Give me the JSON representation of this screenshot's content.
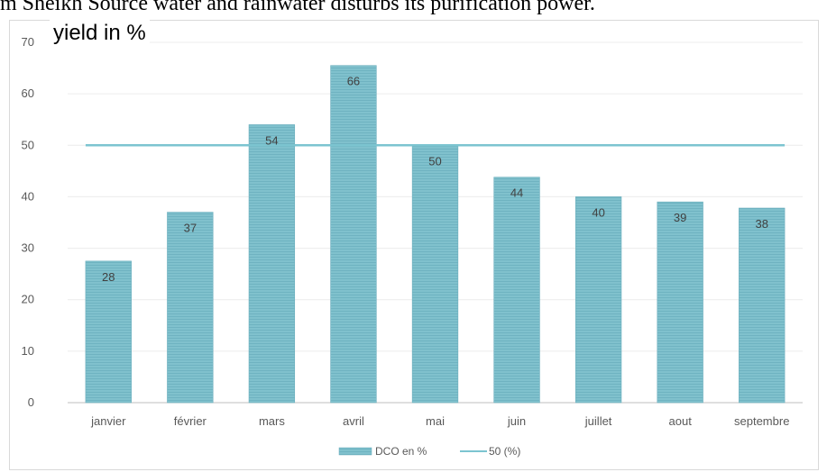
{
  "caption": "m Sheikh Source water and rainwater disturbs its purification power.",
  "chart_data": {
    "type": "bar",
    "title": "",
    "xlabel": "",
    "ylabel": "yield in %",
    "ylim": [
      0,
      70
    ],
    "yticks": [
      0,
      10,
      20,
      30,
      40,
      50,
      60,
      70
    ],
    "categories": [
      "janvier",
      "février",
      "mars",
      "avril",
      "mai",
      "juin",
      "juillet",
      "aout",
      "septembre"
    ],
    "series": [
      {
        "name": "DCO en %",
        "type": "bar",
        "values": [
          27.5,
          37,
          54,
          65.5,
          50,
          43.8,
          40,
          39,
          37.8
        ],
        "data_labels": [
          "28",
          "37",
          "54",
          "66",
          "50",
          "44",
          "40",
          "39",
          "38"
        ],
        "color": "#7fbfcc"
      },
      {
        "name": "50 (%)",
        "type": "line",
        "values": [
          50,
          50,
          50,
          50,
          50,
          50,
          50,
          50,
          50
        ],
        "color": "#7cc4d0"
      }
    ],
    "legend": "bottom",
    "grid": true
  }
}
